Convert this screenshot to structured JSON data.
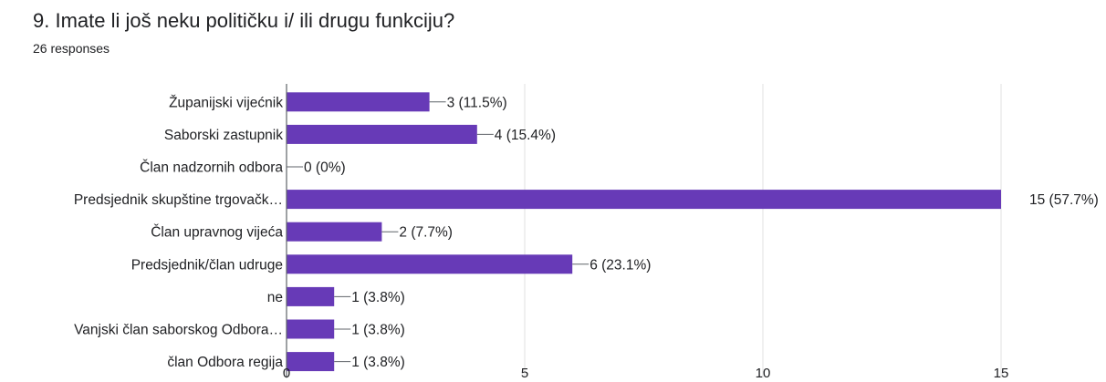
{
  "chart_data": {
    "type": "bar",
    "orientation": "horizontal",
    "title": "9. Imate li još neku političku i/ ili drugu funkciju?",
    "subtitle": "26 responses",
    "categories": [
      "Županijski vijećnik",
      "Saborski zastupnik",
      "Član nadzornih odbora",
      "Predsjednik skupštine trgovačk…",
      "Član upravnog vijeća",
      "Predsjednik/član udruge",
      "ne",
      "Vanjski član saborskog Odbora…",
      "član Odbora regija"
    ],
    "values": [
      3,
      4,
      0,
      15,
      2,
      6,
      1,
      1,
      1
    ],
    "data_labels": [
      "3 (11.5%)",
      "4 (15.4%)",
      "0 (0%)",
      "15 (57.7%)",
      "2 (7.7%)",
      "6 (23.1%)",
      "1 (3.8%)",
      "1 (3.8%)",
      "1 (3.8%)"
    ],
    "xlim": [
      0,
      15
    ],
    "xticks": [
      0,
      5,
      10,
      15
    ],
    "grid": true,
    "bar_color": "#673ab7"
  }
}
